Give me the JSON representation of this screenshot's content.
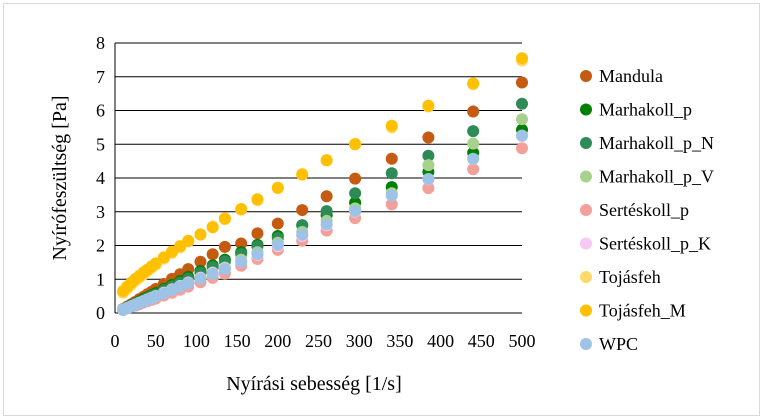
{
  "chart_data": {
    "type": "scatter",
    "title": "",
    "xlabel": "Nyírási sebesség [1/s]",
    "ylabel": "Nyírófeszültség [Pa]",
    "xlim": [
      0,
      500
    ],
    "ylim": [
      0,
      8
    ],
    "xticks": [
      "0",
      "50",
      "100",
      "150",
      "200",
      "250",
      "300",
      "350",
      "400",
      "450",
      "500"
    ],
    "yticks": [
      "0",
      "1",
      "2",
      "3",
      "4",
      "5",
      "6",
      "7",
      "8"
    ],
    "grid": "horizontal",
    "legend_position": "right",
    "x": [
      10,
      12.6,
      15.8,
      19.9,
      25.1,
      31.6,
      39.8,
      50.1,
      63.1,
      79.4,
      100,
      125.9,
      158.5,
      199.5,
      251.2,
      316.2,
      398.1,
      500
    ],
    "x_points": [
      10,
      15,
      20,
      25,
      30,
      35,
      40,
      45,
      50,
      60,
      70,
      80,
      90,
      105,
      120,
      135,
      155,
      175,
      200,
      230,
      260,
      295,
      340,
      385,
      440,
      500
    ],
    "series": [
      {
        "name": "Mandula",
        "color": "#c55a11",
        "values": [
          0.12,
          0.19,
          0.26,
          0.33,
          0.41,
          0.48,
          0.56,
          0.63,
          0.71,
          0.86,
          1.01,
          1.15,
          1.3,
          1.52,
          1.74,
          1.96,
          2.06,
          2.36,
          2.65,
          3.05,
          3.46,
          3.98,
          4.57,
          5.2,
          5.97,
          6.83
        ]
      },
      {
        "name": "Marhakoll_p",
        "color": "#008000",
        "values": [
          0.11,
          0.17,
          0.23,
          0.29,
          0.35,
          0.41,
          0.47,
          0.53,
          0.59,
          0.71,
          0.83,
          0.95,
          1.07,
          1.24,
          1.41,
          1.58,
          1.8,
          2.02,
          2.28,
          2.6,
          2.9,
          3.27,
          3.73,
          4.18,
          4.75,
          5.43
        ]
      },
      {
        "name": "Marhakoll_p_N",
        "color": "#2e8b57",
        "values": [
          0.1,
          0.16,
          0.21,
          0.27,
          0.33,
          0.38,
          0.44,
          0.5,
          0.55,
          0.67,
          0.78,
          0.9,
          1.02,
          1.19,
          1.36,
          1.53,
          1.75,
          1.98,
          2.22,
          2.6,
          3.02,
          3.55,
          4.14,
          4.66,
          5.39,
          6.2
        ]
      },
      {
        "name": "Marhakoll_p_V",
        "color": "#a9d18e",
        "values": [
          0.1,
          0.15,
          0.2,
          0.25,
          0.3,
          0.35,
          0.4,
          0.45,
          0.5,
          0.6,
          0.7,
          0.8,
          0.9,
          1.05,
          1.2,
          1.35,
          1.58,
          1.8,
          2.08,
          2.4,
          2.73,
          3.1,
          3.55,
          4.38,
          5.02,
          5.74
        ]
      },
      {
        "name": "Sertéskoll_p",
        "color": "#f4a09a",
        "values": [
          0.1,
          0.14,
          0.18,
          0.22,
          0.26,
          0.31,
          0.35,
          0.39,
          0.43,
          0.52,
          0.6,
          0.69,
          0.78,
          0.91,
          1.04,
          1.17,
          1.4,
          1.6,
          1.87,
          2.14,
          2.44,
          2.81,
          3.22,
          3.7,
          4.26,
          4.88
        ]
      },
      {
        "name": "Sertéskoll_p_K",
        "color": "#f8c8f4",
        "values": [
          0.1,
          0.15,
          0.2,
          0.25,
          0.3,
          0.35,
          0.4,
          0.45,
          0.5,
          0.6,
          0.7,
          0.8,
          0.9,
          1.04,
          1.18,
          1.32,
          1.52,
          1.72,
          1.98,
          2.28,
          2.6,
          3.0,
          3.48,
          3.96,
          4.56,
          5.24
        ]
      },
      {
        "name": "Tojásfeh",
        "color": "#ffd966",
        "values": [
          0.6,
          0.72,
          0.84,
          0.95,
          1.05,
          1.14,
          1.24,
          1.34,
          1.43,
          1.61,
          1.78,
          1.94,
          2.12,
          2.32,
          2.56,
          2.78,
          3.06,
          3.34,
          3.7,
          4.12,
          4.52,
          5.01,
          5.5,
          6.12,
          6.78,
          7.48
        ]
      },
      {
        "name": "Tojásfeh_M",
        "color": "#ffc000",
        "values": [
          0.65,
          0.78,
          0.9,
          1.01,
          1.1,
          1.2,
          1.29,
          1.38,
          1.47,
          1.65,
          1.82,
          1.98,
          2.14,
          2.33,
          2.54,
          2.8,
          3.08,
          3.37,
          3.71,
          4.1,
          4.53,
          5.0,
          5.55,
          6.14,
          6.8,
          7.55
        ]
      },
      {
        "name": "WPC",
        "color": "#9dc3e6",
        "values": [
          0.09,
          0.14,
          0.19,
          0.24,
          0.29,
          0.34,
          0.39,
          0.44,
          0.49,
          0.58,
          0.68,
          0.78,
          0.88,
          1.02,
          1.16,
          1.3,
          1.52,
          1.74,
          2.02,
          2.32,
          2.63,
          3.02,
          3.48,
          3.97,
          4.57,
          5.26
        ]
      }
    ]
  }
}
